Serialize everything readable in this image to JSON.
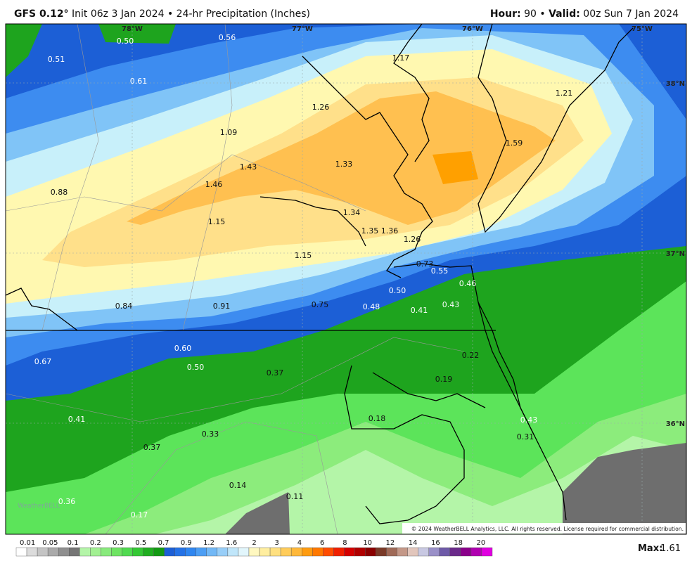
{
  "header": {
    "model": "GFS 0.12°",
    "init": "Init 06z 3 Jan 2024",
    "separator": "•",
    "product": "24-hr Precipitation (Inches)",
    "hour_label": "Hour:",
    "hour": "90",
    "valid_label": "Valid:",
    "valid": "00z Sun 7 Jan 2024"
  },
  "map": {
    "longitudes": [
      "78°W",
      "77°W",
      "76°W",
      "75°W"
    ],
    "latitudes": [
      "38°N",
      "37°N",
      "36°N"
    ],
    "labels": [
      "0.50",
      "0.56",
      "1.17",
      "0.51",
      "0.61",
      "1.21",
      "1.26",
      "1.09",
      "1.59",
      "1.33",
      "1.43",
      "1.46",
      "0.88",
      "1.34",
      "1.15",
      "1.35",
      "1.36",
      "1.26",
      "1.15",
      "0.73",
      "0.55",
      "0.46",
      "0.50",
      "0.84",
      "0.91",
      "0.75",
      "0.48",
      "0.41",
      "0.43",
      "0.60",
      "0.67",
      "0.22",
      "0.50",
      "0.37",
      "0.19",
      "0.18",
      "0.41",
      "0.43",
      "0.33",
      "0.31",
      "0.37",
      "0.14",
      "0.11",
      "0.36",
      "0.17"
    ],
    "logo": "WeatherBELL",
    "copyright": "© 2024 WeatherBELL Analytics, LLC. All rights reserved. License required for commercial distribution."
  },
  "legend": {
    "ticks": [
      "0.01",
      "0.05",
      "0.1",
      "0.2",
      "0.3",
      "0.5",
      "0.7",
      "0.9",
      "1.2",
      "1.6",
      "2",
      "3",
      "4",
      "6",
      "8",
      "10",
      "12",
      "14",
      "16",
      "18",
      "20"
    ],
    "max_label": "Max:",
    "max": "1.61"
  }
}
